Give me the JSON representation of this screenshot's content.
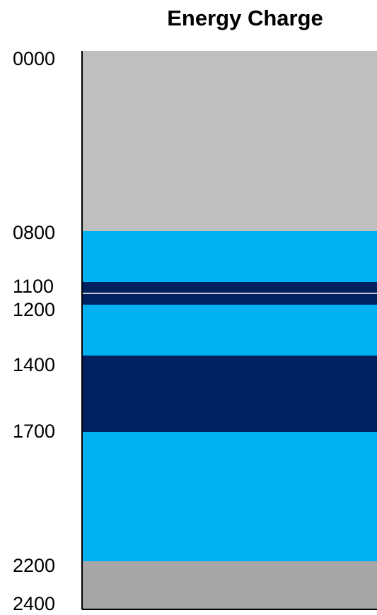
{
  "chart_data": {
    "type": "bar",
    "title": "Energy Charge",
    "orientation": "vertical-stacked-timeline",
    "y_axis": {
      "ylim": [
        "0000",
        "2400"
      ],
      "reversed": true
    },
    "tick_labels": [
      "0000",
      "0800",
      "1100",
      "1200",
      "1400",
      "1700",
      "2200",
      "2400"
    ],
    "bands": [
      {
        "start": 0,
        "end": 800,
        "color": "#bfbfbf"
      },
      {
        "start": 800,
        "end": 1030,
        "color": "#00b0f0"
      },
      {
        "start": 1030,
        "end": 1150,
        "color": "#002060"
      },
      {
        "start": 1150,
        "end": 1400,
        "color": "#00b0f0"
      },
      {
        "start": 1400,
        "end": 1750,
        "color": "#002060"
      },
      {
        "start": 1750,
        "end": 2330,
        "color": "#00b0f0"
      },
      {
        "start": 2330,
        "end": 2550,
        "color": "#a6a6a6"
      }
    ],
    "grid": false,
    "legend": "none"
  }
}
